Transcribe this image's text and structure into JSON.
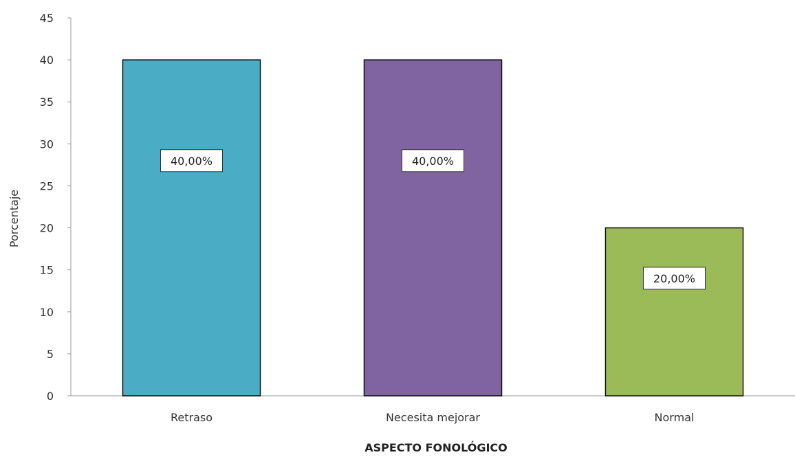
{
  "chart_data": {
    "type": "bar",
    "categories": [
      "Retraso",
      "Necesita mejorar",
      "Normal"
    ],
    "values": [
      40,
      40,
      20
    ],
    "data_labels": [
      "40,00%",
      "40,00%",
      "20,00%"
    ],
    "colors": [
      "#4BACC6",
      "#8064A2",
      "#9BBB59"
    ],
    "title": "",
    "xlabel": "ASPECTO FONOLÓGICO",
    "ylabel": "Porcentaje",
    "ylim": [
      0,
      45
    ],
    "yticks": [
      0,
      5,
      10,
      15,
      20,
      25,
      30,
      35,
      40,
      45
    ],
    "grid": false,
    "legend": "none"
  }
}
